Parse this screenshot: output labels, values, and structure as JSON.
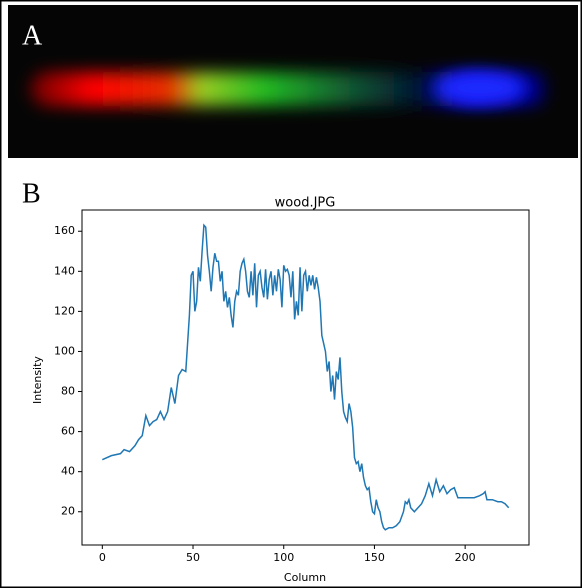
{
  "panels": {
    "a": "A",
    "b": "B"
  },
  "chart_data": {
    "type": "line",
    "title": "wood.JPG",
    "x_label": "Column",
    "y_label": "Intensity",
    "color": "#1f77b4",
    "x": [
      0,
      5,
      10,
      12,
      15,
      18,
      20,
      22,
      24,
      26,
      28,
      30,
      32,
      34,
      36,
      38,
      40,
      42,
      44,
      46,
      48,
      49,
      50,
      51,
      52,
      53,
      54,
      55,
      56,
      57,
      58,
      59,
      60,
      61,
      62,
      63,
      64,
      65,
      66,
      67,
      68,
      69,
      70,
      71,
      72,
      73,
      74,
      75,
      76,
      77,
      78,
      79,
      80,
      81,
      82,
      83,
      84,
      85,
      86,
      87,
      88,
      89,
      90,
      91,
      92,
      93,
      94,
      95,
      96,
      97,
      98,
      99,
      100,
      101,
      102,
      103,
      104,
      105,
      106,
      107,
      108,
      109,
      110,
      111,
      112,
      113,
      114,
      115,
      116,
      117,
      118,
      119,
      120,
      121,
      122,
      123,
      124,
      125,
      126,
      127,
      128,
      129,
      130,
      131,
      132,
      133,
      134,
      135,
      136,
      137,
      138,
      139,
      140,
      141,
      142,
      143,
      144,
      145,
      146,
      147,
      148,
      149,
      150,
      151,
      152,
      153,
      154,
      155,
      156,
      158,
      160,
      162,
      164,
      166,
      167,
      168,
      169,
      170,
      172,
      174,
      176,
      178,
      180,
      182,
      184,
      186,
      188,
      190,
      192,
      194,
      196,
      200,
      205,
      208,
      210,
      211,
      212,
      215,
      218,
      220,
      222,
      224
    ],
    "values": [
      46,
      48,
      49,
      51,
      50,
      53,
      56,
      58,
      68,
      63,
      65,
      66,
      70,
      66,
      70,
      82,
      74,
      88,
      91,
      90,
      118,
      138,
      140,
      120,
      125,
      142,
      135,
      150,
      163,
      162,
      148,
      140,
      130,
      142,
      149,
      145,
      145,
      135,
      140,
      125,
      130,
      122,
      127,
      118,
      112,
      125,
      130,
      128,
      140,
      144,
      146,
      140,
      130,
      127,
      140,
      128,
      144,
      122,
      138,
      140,
      132,
      127,
      141,
      126,
      136,
      140,
      128,
      138,
      130,
      141,
      136,
      122,
      143,
      140,
      141,
      138,
      127,
      140,
      116,
      125,
      118,
      142,
      120,
      138,
      140,
      130,
      138,
      133,
      138,
      131,
      137,
      132,
      125,
      108,
      104,
      100,
      90,
      95,
      80,
      88,
      76,
      90,
      86,
      97,
      80,
      70,
      67,
      65,
      74,
      70,
      62,
      47,
      44,
      45,
      40,
      44,
      37,
      33,
      31,
      32,
      25,
      20,
      19,
      26,
      22,
      20,
      15,
      12,
      11,
      12,
      12,
      13,
      15,
      20,
      25,
      24,
      26,
      22,
      20,
      22,
      24,
      28,
      34,
      28,
      36,
      30,
      33,
      29,
      31,
      32,
      27,
      27,
      27,
      28,
      29,
      30,
      26,
      26,
      25,
      25,
      24,
      22
    ],
    "xlim": [
      -11.2,
      235.2
    ],
    "xticks": [
      0,
      50,
      100,
      150,
      200
    ],
    "ylim": [
      3.4,
      170.6
    ],
    "yticks": [
      20,
      40,
      60,
      80,
      100,
      120,
      140,
      160
    ]
  }
}
